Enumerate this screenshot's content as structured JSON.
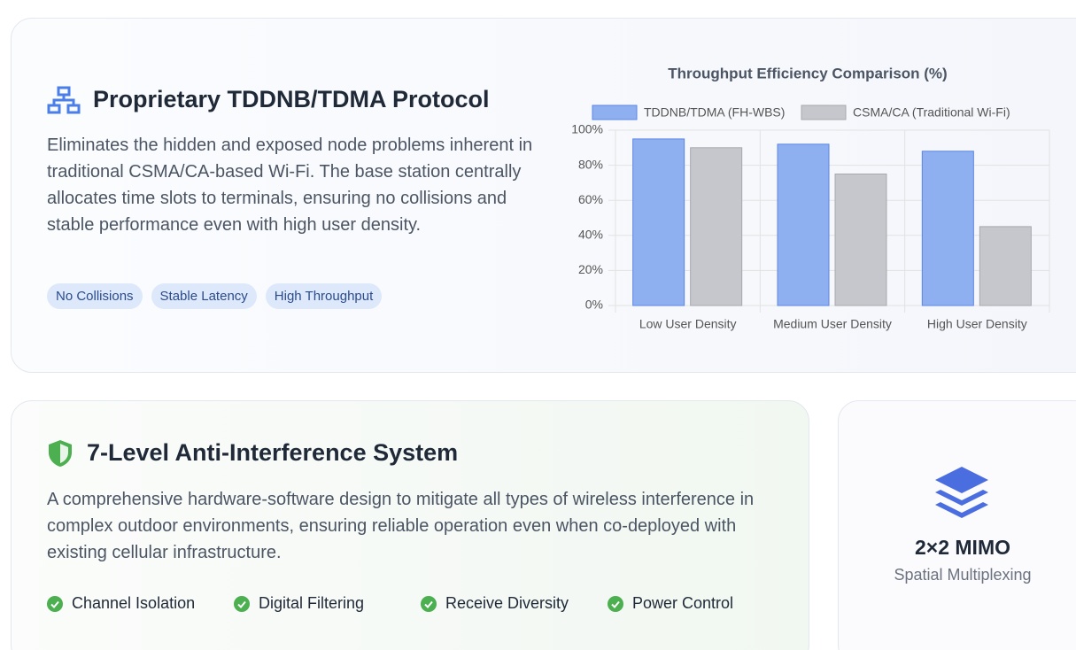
{
  "protocol_card": {
    "title": "Proprietary TDDNB/TDMA Protocol",
    "description": "Eliminates the hidden and exposed node problems inherent in traditional CSMA/CA-based Wi-Fi. The base station centrally allocates time slots to terminals, ensuring no collisions and stable performance even with high user density.",
    "tags": [
      "No Collisions",
      "Stable Latency",
      "High Throughput"
    ]
  },
  "chart_data": {
    "type": "bar",
    "title": "Throughput Efficiency Comparison (%)",
    "categories": [
      "Low User Density",
      "Medium User Density",
      "High User Density"
    ],
    "series": [
      {
        "name": "TDDNB/TDMA (FH-WBS)",
        "color": "#8fb0f0",
        "values": [
          95,
          92,
          88
        ]
      },
      {
        "name": "CSMA/CA (Traditional Wi-Fi)",
        "color": "#c5c7cc",
        "values": [
          90,
          75,
          45
        ]
      }
    ],
    "ylim": [
      0,
      100
    ],
    "yticks": [
      {
        "value": 0,
        "label": "0%"
      },
      {
        "value": 20,
        "label": "20%"
      },
      {
        "value": 40,
        "label": "40%"
      },
      {
        "value": 60,
        "label": "60%"
      },
      {
        "value": 80,
        "label": "80%"
      },
      {
        "value": 100,
        "label": "100%"
      }
    ],
    "grid": true
  },
  "interference_card": {
    "title": "7-Level Anti-Interference System",
    "description": "A comprehensive hardware-software design to mitigate all types of wireless interference in complex outdoor environments, ensuring reliable operation even when co-deployed with existing cellular infrastructure.",
    "features": [
      "Channel Isolation",
      "Digital Filtering",
      "Receive Diversity",
      "Power Control"
    ]
  },
  "mimo_card": {
    "title": "2×2 MIMO",
    "subtitle": "Spatial Multiplexing"
  }
}
